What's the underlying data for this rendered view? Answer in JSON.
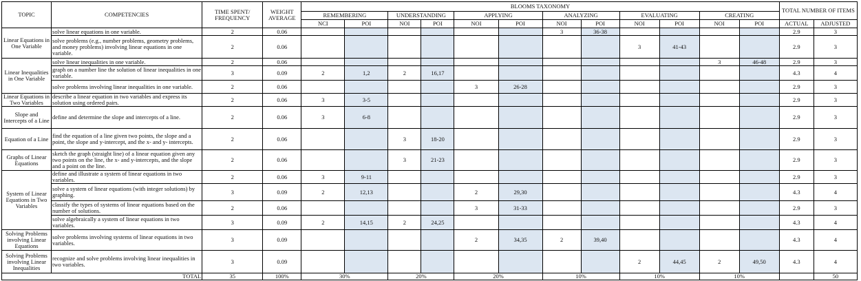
{
  "header": {
    "topic": "TOPIC",
    "competencies": "COMPETENCIES",
    "time": "TIME SPENT/ FREQUENCY",
    "weight": "WEIGHT AVERAGE",
    "blooms": "BLOOMS TAXONOMY",
    "total_items": "TOTAL NUMBER OF ITEMS",
    "actual": "ACTUAL",
    "adjusted": "ADJUSTED",
    "levels": [
      {
        "name": "REMEMBERING",
        "sub": [
          "NCI",
          "POI"
        ]
      },
      {
        "name": "UNDERSTANDING",
        "sub": [
          "NOI",
          "POI"
        ]
      },
      {
        "name": "APPLYING",
        "sub": [
          "NOI",
          "POI"
        ]
      },
      {
        "name": "ANALYZING",
        "sub": [
          "NOI",
          "POI"
        ]
      },
      {
        "name": "EVALUATING",
        "sub": [
          "NOI",
          "POI"
        ]
      },
      {
        "name": "CREATING",
        "sub": [
          "NOI",
          "POI"
        ]
      }
    ]
  },
  "topics": [
    {
      "label": "Linear Equations in One Variable",
      "rows": [
        {
          "competency": "solve linear equations in one variable.",
          "time": 2,
          "weight": 0.06,
          "cells": [
            null,
            null,
            null,
            null,
            null,
            null,
            3,
            "36-38",
            null,
            null,
            null,
            null
          ],
          "actual": 2.9,
          "adjusted": 3
        },
        {
          "competency": "solve problems (e.g., number problems, geometry problems, and money problems) involving linear equations in one variable.",
          "time": 2,
          "weight": 0.06,
          "cells": [
            null,
            null,
            null,
            null,
            null,
            null,
            null,
            null,
            3,
            "41-43",
            null,
            null
          ],
          "actual": 2.9,
          "adjusted": 3
        }
      ]
    },
    {
      "label": "Linear Inequalities in One Variable",
      "rows": [
        {
          "competency": "solve linear inequalities in one variable.",
          "time": 2,
          "weight": 0.06,
          "cells": [
            null,
            null,
            null,
            null,
            null,
            null,
            null,
            null,
            null,
            null,
            3,
            "46-48"
          ],
          "actual": 2.9,
          "adjusted": 3
        },
        {
          "competency": "graph on a number line the solution of linear inequalities in one variable.",
          "time": 3,
          "weight": 0.09,
          "cells": [
            2,
            "1,2",
            2,
            "16,17",
            null,
            null,
            null,
            null,
            null,
            null,
            null,
            null
          ],
          "actual": 4.3,
          "adjusted": 4
        },
        {
          "competency": "solve problems involving linear inequalities in one variable.",
          "time": 2,
          "weight": 0.06,
          "cells": [
            null,
            null,
            null,
            null,
            3,
            "26-28",
            null,
            null,
            null,
            null,
            null,
            null
          ],
          "actual": 2.9,
          "adjusted": 3
        }
      ]
    },
    {
      "label": "Linear Equations in Two Variables",
      "rows": [
        {
          "competency": "describe a linear equation in two variables and express its solution using ordered pairs.",
          "time": 2,
          "weight": 0.06,
          "cells": [
            3,
            "3-5",
            null,
            null,
            null,
            null,
            null,
            null,
            null,
            null,
            null,
            null
          ],
          "actual": 2.9,
          "adjusted": 3
        }
      ]
    },
    {
      "label": "Slope and Intercepts of a Line",
      "rows": [
        {
          "competency": "define and determine the slope and intercepts of a line.",
          "time": 2,
          "weight": 0.06,
          "cells": [
            3,
            "6-8",
            null,
            null,
            null,
            null,
            null,
            null,
            null,
            null,
            null,
            null
          ],
          "actual": 2.9,
          "adjusted": 3
        }
      ]
    },
    {
      "label": "Equation of a Line",
      "rows": [
        {
          "competency": "find the equation of a line given two points, the slope and a point, the slope and y-intercept, and the x- and y- intercepts.",
          "time": 2,
          "weight": 0.06,
          "cells": [
            null,
            null,
            3,
            "18-20",
            null,
            null,
            null,
            null,
            null,
            null,
            null,
            null
          ],
          "actual": 2.9,
          "adjusted": 3
        }
      ]
    },
    {
      "label": "Graphs of Linear Equations",
      "rows": [
        {
          "competency": "sketch the graph (straight line) of a linear equation given any two points on the line, the x- and y-intercepts, and the slope and a point on the line.",
          "time": 2,
          "weight": 0.06,
          "cells": [
            null,
            null,
            3,
            "21-23",
            null,
            null,
            null,
            null,
            null,
            null,
            null,
            null
          ],
          "actual": 2.9,
          "adjusted": 3
        }
      ]
    },
    {
      "label": "System of Linear Equations in Two Variables",
      "rows": [
        {
          "competency": "define and illustrate a system of linear equations in two variables.",
          "time": 2,
          "weight": 0.06,
          "cells": [
            3,
            "9-11",
            null,
            null,
            null,
            null,
            null,
            null,
            null,
            null,
            null,
            null
          ],
          "actual": 2.9,
          "adjusted": 3
        },
        {
          "competency": "solve a system of linear equations (with integer solutions) by graphing.",
          "time": 3,
          "weight": 0.09,
          "cells": [
            2,
            "12,13",
            null,
            null,
            2,
            "29,30",
            null,
            null,
            null,
            null,
            null,
            null
          ],
          "actual": 4.3,
          "adjusted": 4
        },
        {
          "competency": "classify the types of systems of linear equations based on the number of solutions.",
          "time": 2,
          "weight": 0.06,
          "cells": [
            null,
            null,
            null,
            null,
            3,
            "31-33",
            null,
            null,
            null,
            null,
            null,
            null
          ],
          "actual": 2.9,
          "adjusted": 3
        },
        {
          "competency": "solve algebraically a system of linear equations in two variables.",
          "time": 3,
          "weight": 0.09,
          "cells": [
            2,
            "14,15",
            2,
            "24,25",
            null,
            null,
            null,
            null,
            null,
            null,
            null,
            null
          ],
          "actual": 4.3,
          "adjusted": 4
        }
      ]
    },
    {
      "label": "Solving Problems involving Linear Equations",
      "rows": [
        {
          "competency": "solve problems involving systems of linear equations in two variables.",
          "time": 3,
          "weight": 0.09,
          "cells": [
            null,
            null,
            null,
            null,
            2,
            "34,35",
            2,
            "39,40",
            null,
            null,
            null,
            null
          ],
          "actual": 4.3,
          "adjusted": 4
        }
      ]
    },
    {
      "label": "Solving Problems involving Linear Inequalities",
      "rows": [
        {
          "competency": "recognize and solve problems involving linear inequalities in two variables.",
          "time": 3,
          "weight": 0.09,
          "cells": [
            null,
            null,
            null,
            null,
            null,
            null,
            null,
            null,
            2,
            "44,45",
            2,
            "49,50"
          ],
          "actual": 4.3,
          "adjusted": 4
        }
      ]
    }
  ],
  "total": {
    "label": "TOTAL",
    "time": 35,
    "weight": "100%",
    "percents": [
      "30%",
      "20%",
      "20%",
      "10%",
      "10%",
      "10%"
    ],
    "adjusted": 50
  }
}
